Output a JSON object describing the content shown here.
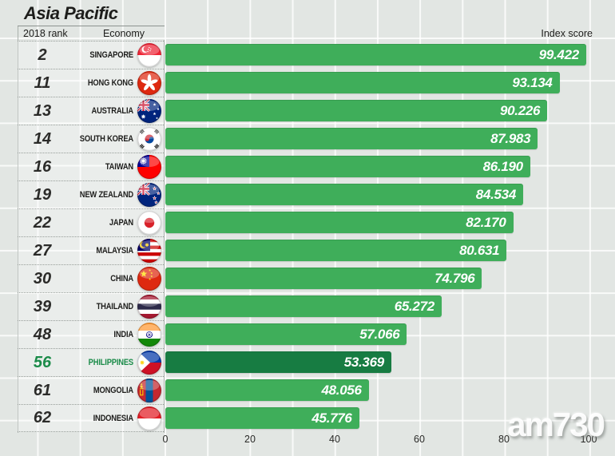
{
  "title": "Asia Pacific",
  "columns": {
    "rank": "2018 rank",
    "economy": "Economy",
    "score": "Index score"
  },
  "watermark": "am730",
  "colors": {
    "background": "#E2E6E3",
    "bar_green": "#3FAE5A",
    "philippines_bar_green": "#177C42",
    "philippines_text_green": "#1B8B49",
    "text_dark": "#1D1D1B",
    "bar_value_text": "#FFFFFF"
  },
  "chart_data": {
    "type": "bar",
    "orientation": "horizontal",
    "title": "Asia Pacific",
    "x_axis": {
      "label": "Index score",
      "range": [
        0,
        100
      ],
      "ticks": [
        "0",
        "20",
        "40",
        "60",
        "80",
        "100"
      ],
      "grid": true
    },
    "rows": [
      {
        "rank": "2",
        "economy": "SINGAPORE",
        "flag": "singapore-flag-icon",
        "code": "sg",
        "score": "99.422",
        "highlight": false
      },
      {
        "rank": "11",
        "economy": "HONG KONG",
        "flag": "hong-kong-flag-icon",
        "code": "hk",
        "score": "93.134",
        "highlight": false
      },
      {
        "rank": "13",
        "economy": "AUSTRALIA",
        "flag": "australia-flag-icon",
        "code": "au",
        "score": "90.226",
        "highlight": false
      },
      {
        "rank": "14",
        "economy": "SOUTH KOREA",
        "flag": "south-korea-flag-icon",
        "code": "kr",
        "score": "87.983",
        "highlight": false
      },
      {
        "rank": "16",
        "economy": "TAIWAN",
        "flag": "taiwan-flag-icon",
        "code": "tw",
        "score": "86.190",
        "highlight": false
      },
      {
        "rank": "19",
        "economy": "NEW ZEALAND",
        "flag": "new-zealand-flag-icon",
        "code": "nz",
        "score": "84.534",
        "highlight": false
      },
      {
        "rank": "22",
        "economy": "JAPAN",
        "flag": "japan-flag-icon",
        "code": "jp",
        "score": "82.170",
        "highlight": false
      },
      {
        "rank": "27",
        "economy": "MALAYSIA",
        "flag": "malaysia-flag-icon",
        "code": "my",
        "score": "80.631",
        "highlight": false
      },
      {
        "rank": "30",
        "economy": "CHINA",
        "flag": "china-flag-icon",
        "code": "cn",
        "score": "74.796",
        "highlight": false
      },
      {
        "rank": "39",
        "economy": "THAILAND",
        "flag": "thailand-flag-icon",
        "code": "th",
        "score": "65.272",
        "highlight": false
      },
      {
        "rank": "48",
        "economy": "INDIA",
        "flag": "india-flag-icon",
        "code": "in",
        "score": "57.066",
        "highlight": false
      },
      {
        "rank": "56",
        "economy": "PHILIPPINES",
        "flag": "philippines-flag-icon",
        "code": "ph",
        "score": "53.369",
        "highlight": true
      },
      {
        "rank": "61",
        "economy": "MONGOLIA",
        "flag": "mongolia-flag-icon",
        "code": "mn",
        "score": "48.056",
        "highlight": false
      },
      {
        "rank": "62",
        "economy": "INDONESIA",
        "flag": "indonesia-flag-icon",
        "code": "id",
        "score": "45.776",
        "highlight": false
      }
    ]
  }
}
